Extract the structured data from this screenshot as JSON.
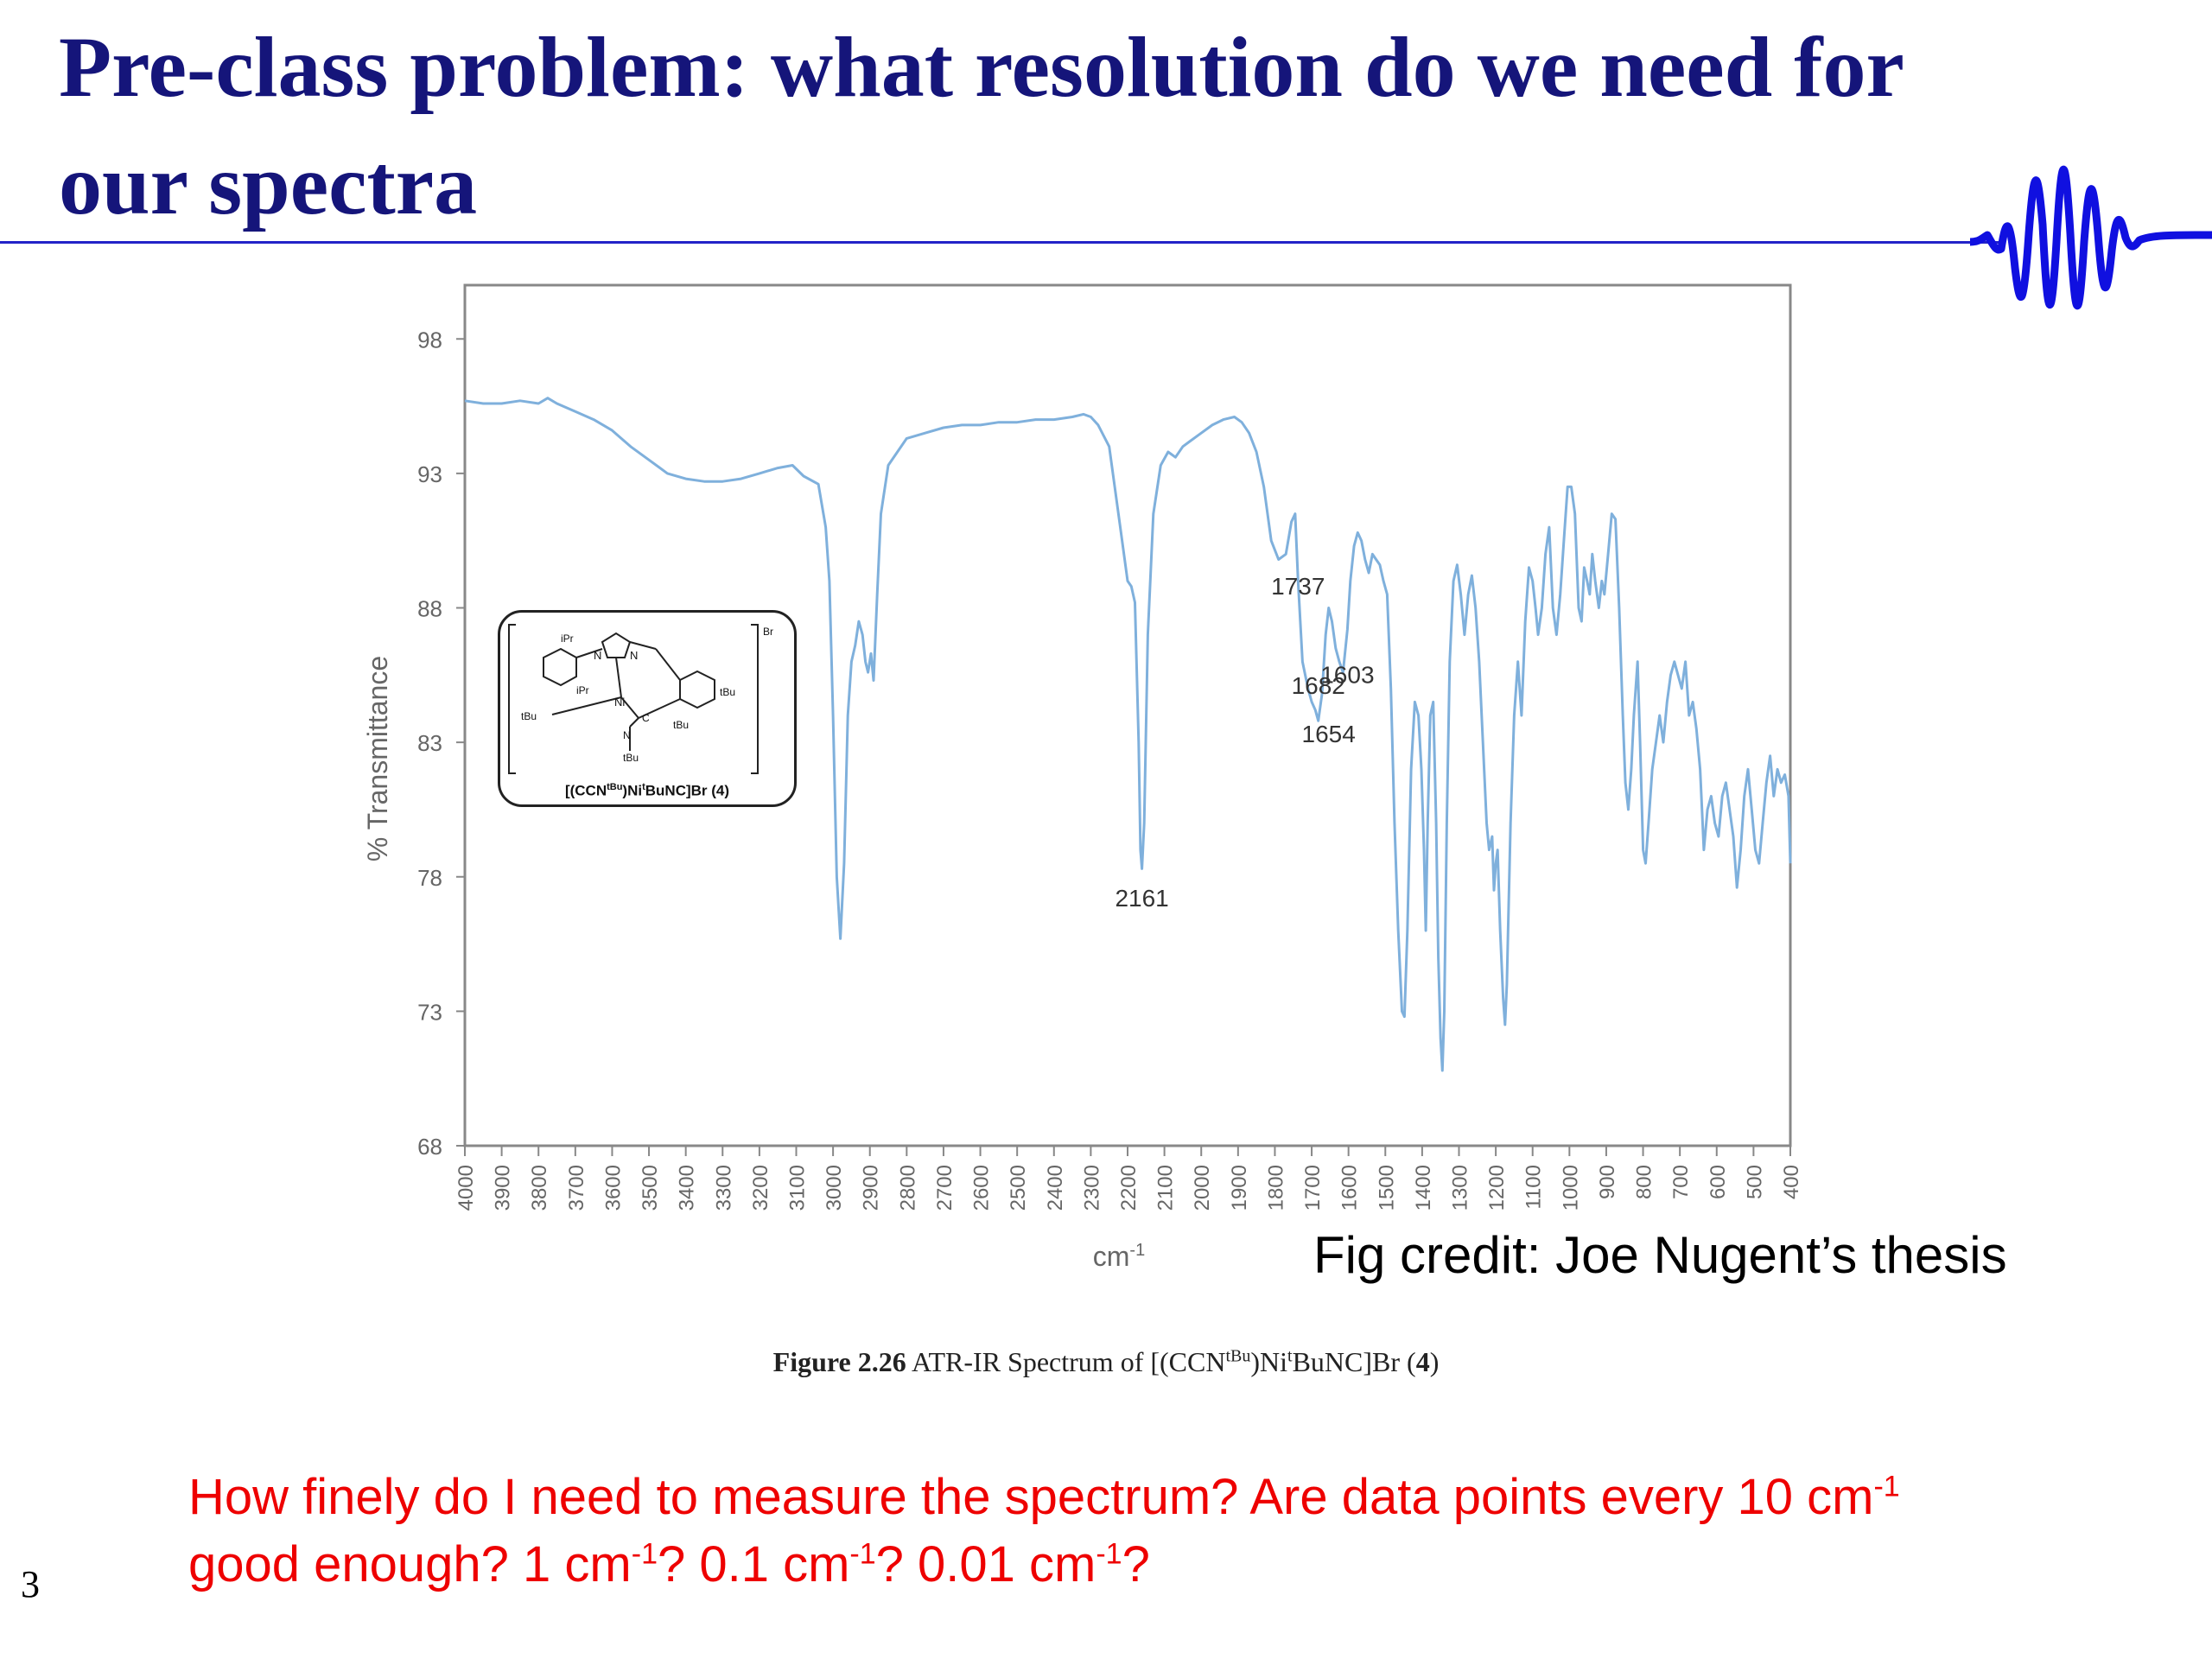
{
  "slide": {
    "title": "Pre-class problem: what resolution do we need for our spectra",
    "page_number": "3"
  },
  "credit": "Fig credit: Joe Nugent’s thesis",
  "caption": {
    "figure_label": "Figure 2.26",
    "text_before": " ATR-IR Spectrum of [(CCN",
    "sup1": "tBu",
    "text_middle": ")Ni",
    "sup2": "t",
    "text_after": "BuNC]Br (",
    "bold_number": "4",
    "text_end": ")"
  },
  "question": {
    "line1_text": "How finely do I need to measure the spectrum?  Are data points every 10 cm",
    "line2_a": "good enough?  1 cm",
    "line2_b": "?  0.1 cm",
    "line2_c": "?  0.01 cm",
    "line2_d": "?",
    "sup": "-1"
  },
  "structure": {
    "label_a": "[(CCN",
    "label_sup": "tBu",
    "label_b": ")Ni",
    "label_sup2": "t",
    "label_c": "BuNC]Br (4)",
    "atoms": [
      "iPr",
      "iPr",
      "N",
      "N",
      "Br",
      "tBu",
      "tBu",
      "Ni",
      "C",
      "N",
      "tBu",
      "tBu"
    ]
  },
  "chart_data": {
    "type": "line",
    "xlabel": "cm-1",
    "ylabel": "% Transmittance",
    "xlim": [
      4000,
      400
    ],
    "ylim": [
      68,
      100
    ],
    "x_reversed": true,
    "xticks": [
      4000,
      3900,
      3800,
      3700,
      3600,
      3500,
      3400,
      3300,
      3200,
      3100,
      3000,
      2900,
      2800,
      2700,
      2600,
      2500,
      2400,
      2300,
      2200,
      2100,
      2000,
      1900,
      1800,
      1700,
      1600,
      1500,
      1400,
      1300,
      1200,
      1100,
      1000,
      900,
      800,
      700,
      600,
      500,
      400
    ],
    "yticks": [
      68,
      73,
      78,
      83,
      88,
      93,
      98
    ],
    "grid": false,
    "color": "#7fb0dc",
    "annotations": [
      {
        "text": "1737",
        "x": 1737,
        "y": 88.5
      },
      {
        "text": "1682",
        "x": 1682,
        "y": 84.8
      },
      {
        "text": "1603",
        "x": 1603,
        "y": 85.2
      },
      {
        "text": "1654",
        "x": 1654,
        "y": 83.0
      },
      {
        "text": "2161",
        "x": 2161,
        "y": 76.9
      }
    ],
    "series": [
      {
        "points": [
          [
            4000,
            95.7
          ],
          [
            3950,
            95.6
          ],
          [
            3900,
            95.6
          ],
          [
            3850,
            95.7
          ],
          [
            3800,
            95.6
          ],
          [
            3775,
            95.8
          ],
          [
            3750,
            95.6
          ],
          [
            3700,
            95.3
          ],
          [
            3650,
            95.0
          ],
          [
            3600,
            94.6
          ],
          [
            3550,
            94.0
          ],
          [
            3500,
            93.5
          ],
          [
            3450,
            93.0
          ],
          [
            3400,
            92.8
          ],
          [
            3350,
            92.7
          ],
          [
            3300,
            92.7
          ],
          [
            3250,
            92.8
          ],
          [
            3200,
            93.0
          ],
          [
            3150,
            93.2
          ],
          [
            3110,
            93.3
          ],
          [
            3080,
            92.9
          ],
          [
            3040,
            92.6
          ],
          [
            3020,
            91.0
          ],
          [
            3010,
            89.0
          ],
          [
            3000,
            84.0
          ],
          [
            2990,
            78.0
          ],
          [
            2980,
            75.7
          ],
          [
            2970,
            78.5
          ],
          [
            2960,
            84.0
          ],
          [
            2950,
            86.0
          ],
          [
            2940,
            86.6
          ],
          [
            2930,
            87.5
          ],
          [
            2920,
            87.0
          ],
          [
            2912,
            86.0
          ],
          [
            2905,
            85.6
          ],
          [
            2897,
            86.3
          ],
          [
            2890,
            85.3
          ],
          [
            2880,
            88.5
          ],
          [
            2870,
            91.5
          ],
          [
            2850,
            93.3
          ],
          [
            2800,
            94.3
          ],
          [
            2750,
            94.5
          ],
          [
            2700,
            94.7
          ],
          [
            2650,
            94.8
          ],
          [
            2600,
            94.8
          ],
          [
            2550,
            94.9
          ],
          [
            2500,
            94.9
          ],
          [
            2450,
            95.0
          ],
          [
            2400,
            95.0
          ],
          [
            2350,
            95.1
          ],
          [
            2320,
            95.2
          ],
          [
            2300,
            95.1
          ],
          [
            2280,
            94.8
          ],
          [
            2250,
            94.0
          ],
          [
            2220,
            91.0
          ],
          [
            2200,
            89.0
          ],
          [
            2190,
            88.8
          ],
          [
            2180,
            88.2
          ],
          [
            2170,
            83.0
          ],
          [
            2165,
            79.0
          ],
          [
            2161,
            78.3
          ],
          [
            2155,
            80.0
          ],
          [
            2145,
            87.0
          ],
          [
            2130,
            91.5
          ],
          [
            2110,
            93.3
          ],
          [
            2090,
            93.8
          ],
          [
            2070,
            93.6
          ],
          [
            2050,
            94.0
          ],
          [
            2030,
            94.2
          ],
          [
            2000,
            94.5
          ],
          [
            1970,
            94.8
          ],
          [
            1940,
            95.0
          ],
          [
            1910,
            95.1
          ],
          [
            1890,
            94.9
          ],
          [
            1870,
            94.5
          ],
          [
            1850,
            93.8
          ],
          [
            1830,
            92.5
          ],
          [
            1810,
            90.5
          ],
          [
            1790,
            89.8
          ],
          [
            1770,
            90.0
          ],
          [
            1755,
            91.2
          ],
          [
            1745,
            91.5
          ],
          [
            1737,
            89.0
          ],
          [
            1725,
            86.0
          ],
          [
            1710,
            85.0
          ],
          [
            1700,
            84.5
          ],
          [
            1690,
            84.2
          ],
          [
            1682,
            83.8
          ],
          [
            1672,
            84.8
          ],
          [
            1662,
            87.0
          ],
          [
            1654,
            88.0
          ],
          [
            1645,
            87.5
          ],
          [
            1635,
            86.5
          ],
          [
            1625,
            86.0
          ],
          [
            1615,
            85.6
          ],
          [
            1603,
            87.2
          ],
          [
            1595,
            89.0
          ],
          [
            1585,
            90.3
          ],
          [
            1575,
            90.8
          ],
          [
            1565,
            90.5
          ],
          [
            1555,
            89.8
          ],
          [
            1545,
            89.3
          ],
          [
            1535,
            90.0
          ],
          [
            1525,
            89.8
          ],
          [
            1515,
            89.6
          ],
          [
            1505,
            89.0
          ],
          [
            1495,
            88.5
          ],
          [
            1485,
            85.0
          ],
          [
            1475,
            80.0
          ],
          [
            1465,
            76.0
          ],
          [
            1455,
            73.0
          ],
          [
            1448,
            72.8
          ],
          [
            1440,
            76.0
          ],
          [
            1430,
            82.0
          ],
          [
            1420,
            84.5
          ],
          [
            1410,
            84.0
          ],
          [
            1402,
            82.0
          ],
          [
            1395,
            79.0
          ],
          [
            1390,
            76.0
          ],
          [
            1385,
            80.0
          ],
          [
            1378,
            84.0
          ],
          [
            1370,
            84.5
          ],
          [
            1362,
            80.0
          ],
          [
            1356,
            75.0
          ],
          [
            1350,
            72.0
          ],
          [
            1345,
            70.8
          ],
          [
            1340,
            73.0
          ],
          [
            1333,
            80.0
          ],
          [
            1325,
            86.0
          ],
          [
            1315,
            89.0
          ],
          [
            1305,
            89.6
          ],
          [
            1295,
            88.5
          ],
          [
            1285,
            87.0
          ],
          [
            1275,
            88.5
          ],
          [
            1265,
            89.2
          ],
          [
            1255,
            88.0
          ],
          [
            1245,
            86.0
          ],
          [
            1235,
            83.0
          ],
          [
            1225,
            80.0
          ],
          [
            1218,
            79.0
          ],
          [
            1210,
            79.5
          ],
          [
            1205,
            77.5
          ],
          [
            1200,
            78.5
          ],
          [
            1195,
            79.0
          ],
          [
            1188,
            76.0
          ],
          [
            1180,
            73.5
          ],
          [
            1175,
            72.5
          ],
          [
            1170,
            74.0
          ],
          [
            1160,
            80.0
          ],
          [
            1150,
            84.0
          ],
          [
            1140,
            86.0
          ],
          [
            1130,
            84.0
          ],
          [
            1120,
            87.5
          ],
          [
            1110,
            89.5
          ],
          [
            1100,
            89.0
          ],
          [
            1092,
            88.0
          ],
          [
            1085,
            87.0
          ],
          [
            1075,
            88.0
          ],
          [
            1065,
            90.0
          ],
          [
            1055,
            91.0
          ],
          [
            1045,
            88.0
          ],
          [
            1035,
            87.0
          ],
          [
            1025,
            88.5
          ],
          [
            1015,
            90.5
          ],
          [
            1005,
            92.5
          ],
          [
            995,
            92.5
          ],
          [
            985,
            91.5
          ],
          [
            975,
            88.0
          ],
          [
            967,
            87.5
          ],
          [
            960,
            89.5
          ],
          [
            952,
            89.0
          ],
          [
            945,
            88.5
          ],
          [
            938,
            90.0
          ],
          [
            930,
            89.0
          ],
          [
            920,
            88.0
          ],
          [
            912,
            89.0
          ],
          [
            905,
            88.5
          ],
          [
            895,
            90.0
          ],
          [
            885,
            91.5
          ],
          [
            875,
            91.3
          ],
          [
            865,
            88.0
          ],
          [
            855,
            84.0
          ],
          [
            848,
            81.5
          ],
          [
            840,
            80.5
          ],
          [
            832,
            82.0
          ],
          [
            825,
            84.0
          ],
          [
            815,
            86.0
          ],
          [
            808,
            83.0
          ],
          [
            800,
            79.0
          ],
          [
            793,
            78.5
          ],
          [
            785,
            80.0
          ],
          [
            775,
            82.0
          ],
          [
            765,
            83.0
          ],
          [
            755,
            84.0
          ],
          [
            745,
            83.0
          ],
          [
            735,
            84.5
          ],
          [
            725,
            85.5
          ],
          [
            715,
            86.0
          ],
          [
            705,
            85.5
          ],
          [
            695,
            85.0
          ],
          [
            685,
            86.0
          ],
          [
            675,
            84.0
          ],
          [
            665,
            84.5
          ],
          [
            655,
            83.5
          ],
          [
            645,
            82.0
          ],
          [
            635,
            79.0
          ],
          [
            625,
            80.5
          ],
          [
            615,
            81.0
          ],
          [
            605,
            80.0
          ],
          [
            595,
            79.5
          ],
          [
            585,
            81.0
          ],
          [
            575,
            81.5
          ],
          [
            565,
            80.5
          ],
          [
            555,
            79.5
          ],
          [
            545,
            77.6
          ],
          [
            535,
            79.0
          ],
          [
            525,
            81.0
          ],
          [
            515,
            82.0
          ],
          [
            505,
            80.5
          ],
          [
            495,
            79.0
          ],
          [
            485,
            78.5
          ],
          [
            475,
            80.0
          ],
          [
            465,
            81.5
          ],
          [
            455,
            82.5
          ],
          [
            445,
            81.0
          ],
          [
            435,
            82.0
          ],
          [
            425,
            81.5
          ],
          [
            415,
            81.8
          ],
          [
            405,
            81.0
          ],
          [
            400,
            78.5
          ]
        ]
      }
    ]
  }
}
